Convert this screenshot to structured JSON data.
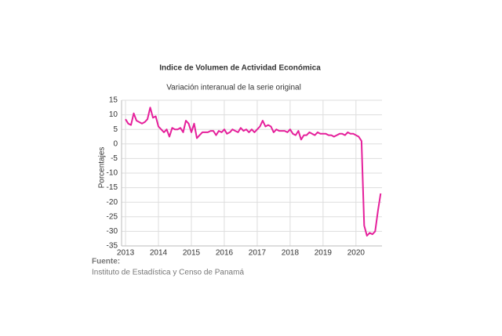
{
  "chart_data": {
    "type": "line",
    "title": "Indice de Volumen de  Actividad Económica",
    "subtitle": "Variación interanual de la serie original",
    "y_label": "Porcentajes",
    "source_label": "Fuente:",
    "source": "Instituto de Estadística y Censo de Panamá",
    "xlim": [
      2012.88,
      2020.79
    ],
    "xticks": [
      2013,
      2014,
      2015,
      2016,
      2017,
      2018,
      2019,
      2020
    ],
    "ylim": [
      -35,
      15
    ],
    "yticks": [
      15,
      10,
      5,
      0,
      -5,
      -10,
      -15,
      -20,
      -25,
      -30,
      -35
    ],
    "grid": true,
    "x": [
      2013.0,
      2013.083,
      2013.167,
      2013.25,
      2013.333,
      2013.417,
      2013.5,
      2013.583,
      2013.667,
      2013.75,
      2013.833,
      2013.917,
      2014.0,
      2014.083,
      2014.167,
      2014.25,
      2014.333,
      2014.417,
      2014.5,
      2014.583,
      2014.667,
      2014.75,
      2014.833,
      2014.917,
      2015.0,
      2015.083,
      2015.167,
      2015.25,
      2015.333,
      2015.417,
      2015.5,
      2015.583,
      2015.667,
      2015.75,
      2015.833,
      2015.917,
      2016.0,
      2016.083,
      2016.167,
      2016.25,
      2016.333,
      2016.417,
      2016.5,
      2016.583,
      2016.667,
      2016.75,
      2016.833,
      2016.917,
      2017.0,
      2017.083,
      2017.167,
      2017.25,
      2017.333,
      2017.417,
      2017.5,
      2017.583,
      2017.667,
      2017.75,
      2017.833,
      2017.917,
      2018.0,
      2018.083,
      2018.167,
      2018.25,
      2018.333,
      2018.417,
      2018.5,
      2018.583,
      2018.667,
      2018.75,
      2018.833,
      2018.917,
      2019.0,
      2019.083,
      2019.167,
      2019.25,
      2019.333,
      2019.417,
      2019.5,
      2019.583,
      2019.667,
      2019.75,
      2019.833,
      2019.917,
      2020.0,
      2020.083,
      2020.167,
      2020.25,
      2020.333,
      2020.417,
      2020.5,
      2020.583,
      2020.667,
      2020.75
    ],
    "series": [
      {
        "color": "#e5209b",
        "values": [
          8.5,
          7,
          6.5,
          10.5,
          8,
          7.5,
          7,
          7.5,
          8.5,
          12.5,
          9,
          9.5,
          6,
          5,
          4,
          5,
          2.5,
          5.5,
          5,
          5,
          5.5,
          4,
          8,
          7,
          4,
          7,
          2,
          3,
          4,
          4,
          4,
          4.5,
          4.5,
          3,
          4.5,
          4,
          5,
          3.5,
          4,
          5,
          4.5,
          4,
          5.5,
          4.5,
          5,
          4,
          5,
          4,
          5,
          6,
          8,
          6,
          6.5,
          6,
          4,
          5,
          4.5,
          4.5,
          4.5,
          4,
          5,
          3.5,
          3,
          4.5,
          1.5,
          3,
          3,
          4,
          3.5,
          3,
          4,
          3.5,
          3.5,
          3.5,
          3,
          3,
          2.5,
          3,
          3.5,
          3.5,
          3,
          4,
          3.5,
          3.5,
          3,
          2.5,
          1,
          -28,
          -31.5,
          -30.5,
          -31,
          -30,
          -23,
          -17
        ]
      }
    ]
  }
}
